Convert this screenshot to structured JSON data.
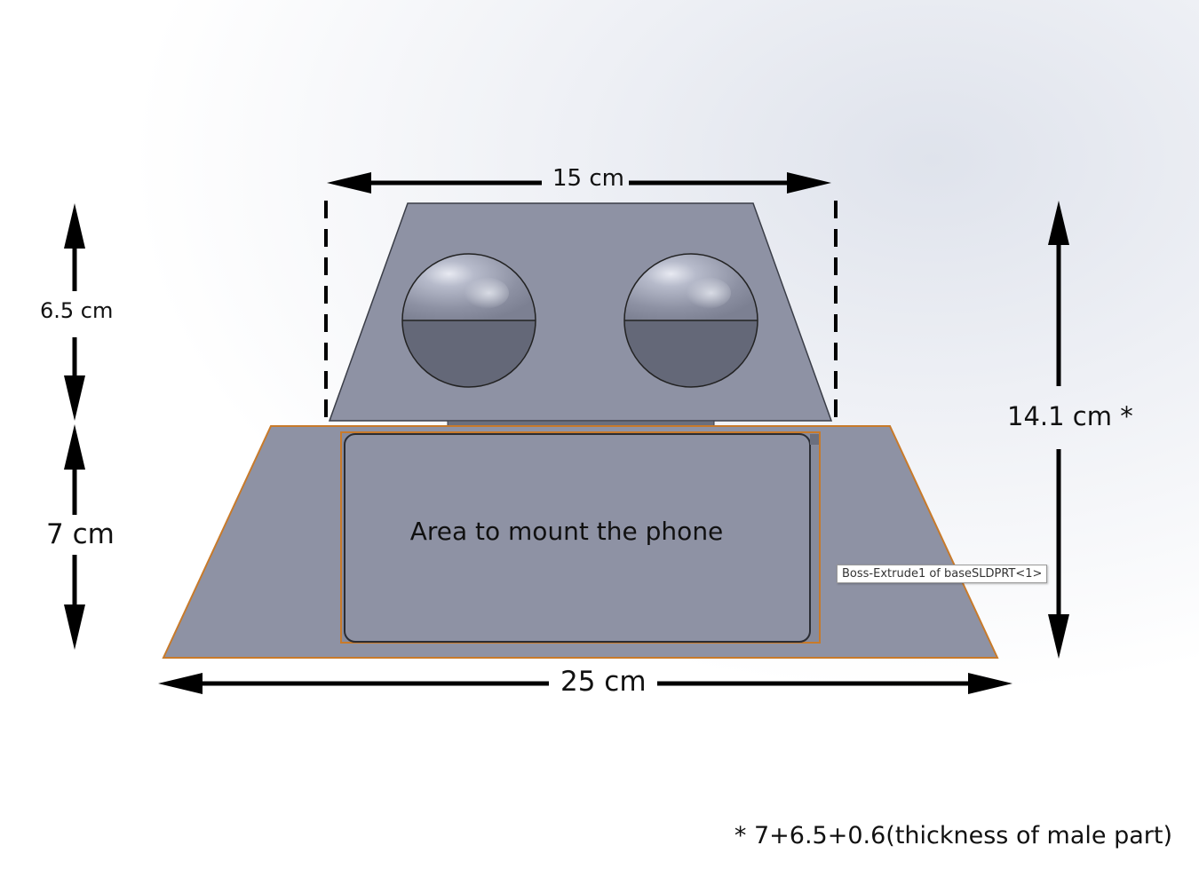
{
  "dimensions": {
    "top_width": "15 cm",
    "upper_height": "6.5 cm",
    "lower_height": "7 cm",
    "total_height": "14.1 cm *",
    "bottom_width": "25 cm"
  },
  "phone_area_label": "Area to mount the phone",
  "tooltip": "Boss-Extrude1 of baseSLDPRT<1>",
  "footnote": "* 7+6.5+0.6(thickness of male part)",
  "colors": {
    "part_fill": "#8e92a4",
    "part_edge": "#3a3d47",
    "selected_edge": "#c87a2a",
    "sphere_dark": "#646878",
    "arrow": "#000000"
  },
  "icons": [
    "arrow-left-icon",
    "arrow-right-icon",
    "arrow-up-icon",
    "arrow-down-icon"
  ]
}
